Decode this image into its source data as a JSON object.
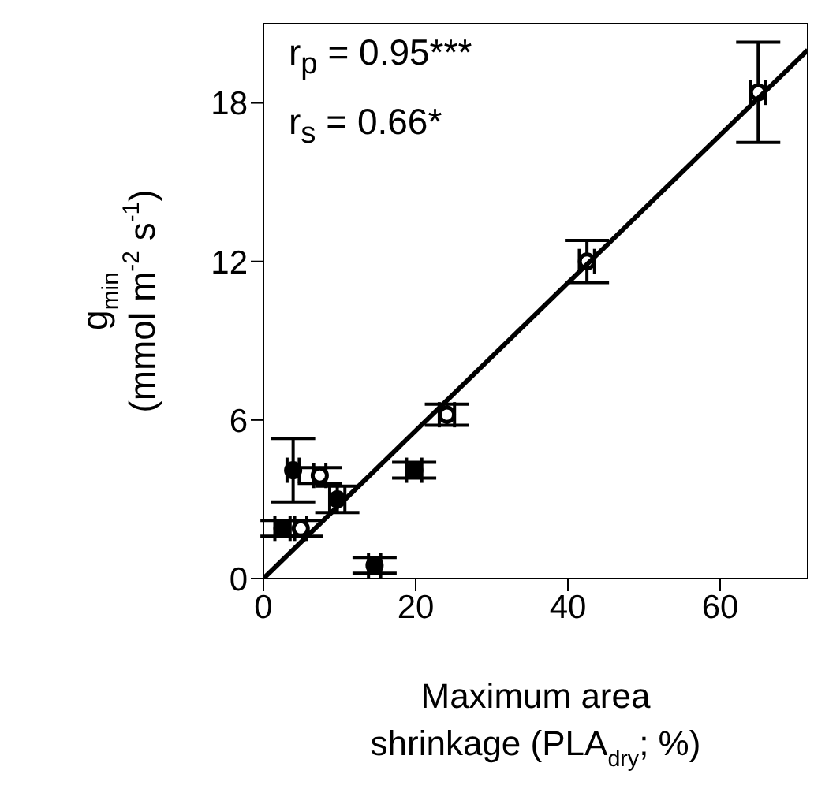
{
  "chart_data": {
    "type": "scatter",
    "xlabel": "Maximum area shrinkage (PLA$_{dry}$; %)",
    "ylabel": "g$_{min}$ (mmol m$^{-2}$ s$^{-1}$)",
    "annotations": [
      "r$_{p}$ = 0.95***",
      "r$_{s}$ = 0.66*"
    ],
    "xlim": [
      0,
      71.5
    ],
    "ylim": [
      0,
      21
    ],
    "xticks": [
      0,
      20,
      40,
      60
    ],
    "yticks": [
      0,
      6,
      12,
      18
    ],
    "marker": "circle",
    "series": [
      {
        "color": "#ffffff",
        "x": [
          65,
          42.5,
          24.1,
          7.4,
          4.9
        ],
        "values": [
          18.4,
          12.0,
          6.2,
          3.9,
          1.9
        ],
        "errors": [
          1.9,
          0.8,
          0.4,
          0.3,
          0.3
        ],
        "xerrors": [
          1,
          1,
          1,
          0.8,
          0.8
        ]
      },
      {
        "color": "#000000",
        "x": [
          3.9,
          9.7,
          2.5,
          19.8,
          14.6
        ],
        "values": [
          4.1,
          3.0,
          1.9,
          4.1,
          0.5
        ],
        "errors": [
          1.2,
          0.5,
          0.3,
          0.3,
          0.3
        ],
        "xerrors": [
          0.8,
          1,
          1,
          1,
          0.8
        ]
      },
      {
        "type": "line",
        "color": "#000000",
        "marker": "none",
        "x": [
          0,
          71.5
        ],
        "values": [
          0,
          20
        ]
      }
    ]
  }
}
